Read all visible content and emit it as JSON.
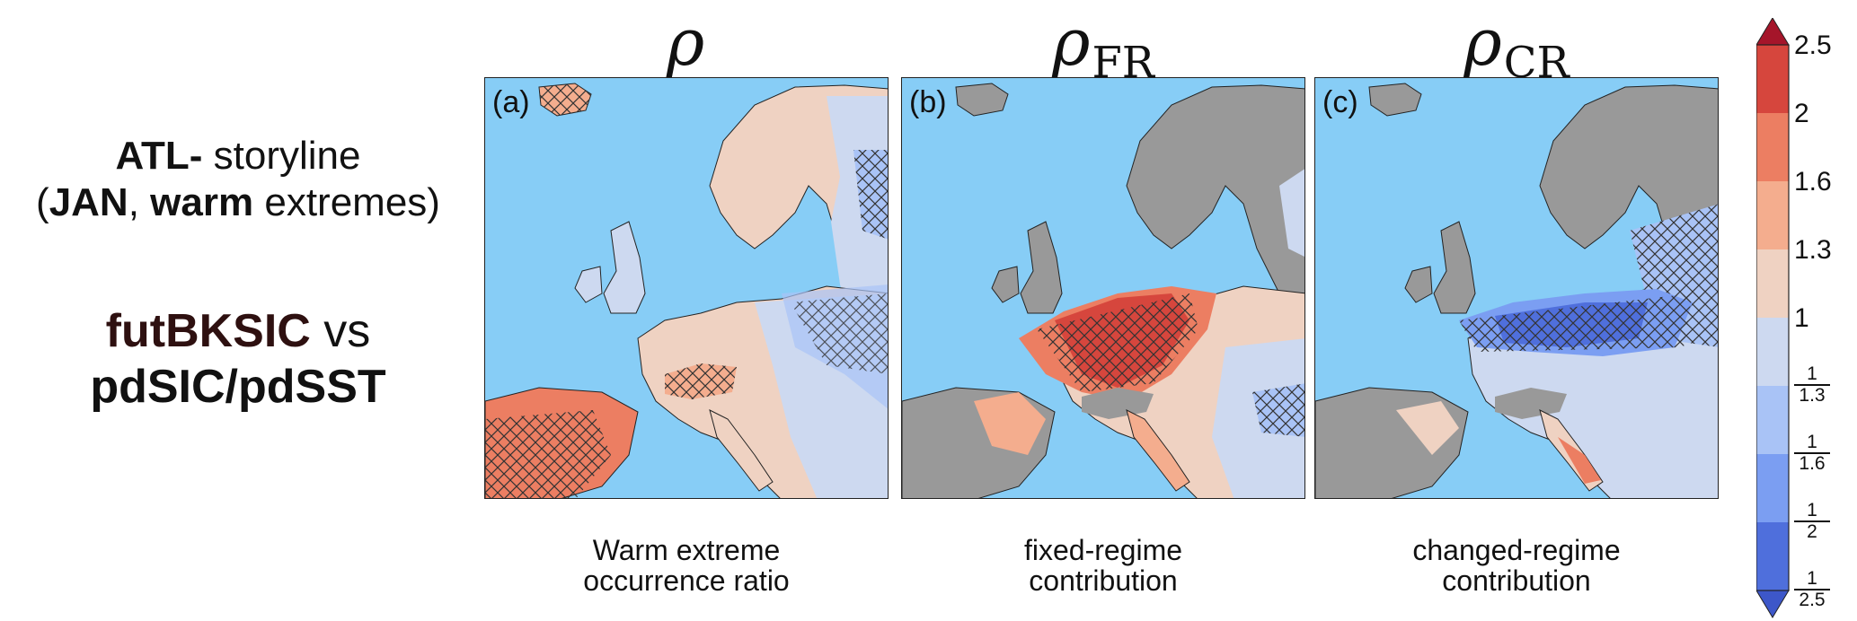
{
  "left": {
    "storyline_bold": "ATL-",
    "storyline_rest": " storyline",
    "paren_open": "(",
    "month": "JAN",
    "comma": ", ",
    "extreme_type": "warm",
    "extremes_word": " extremes)",
    "experiment_main": "futBKSIC",
    "experiment_vs": " vs",
    "experiment_baseline": "pdSIC/pdSST"
  },
  "panels": [
    {
      "symbol": "ρ",
      "subscript": "",
      "label": "(a)",
      "caption_line1": "Warm extreme",
      "caption_line2": "occurrence ratio"
    },
    {
      "symbol": "ρ",
      "subscript": "FR",
      "label": "(b)",
      "caption_line1": "fixed-regime",
      "caption_line2": "contribution"
    },
    {
      "symbol": "ρ",
      "subscript": "CR",
      "label": "(c)",
      "caption_line1": "changed-regime",
      "caption_line2": "contribution"
    }
  ],
  "colorbar": {
    "labels": [
      "2.5",
      "2",
      "1.6",
      "1.3",
      "1"
    ],
    "fractions": [
      {
        "num": "1",
        "den": "1.3"
      },
      {
        "num": "1",
        "den": "1.6"
      },
      {
        "num": "1",
        "den": "2"
      },
      {
        "num": "1",
        "den": "2.5"
      }
    ],
    "colors": {
      "over": "#a5152a",
      "c_2_to_25": "#d6463d",
      "c_16_to_2": "#ec7e62",
      "c_13_to_16": "#f4ad8e",
      "c_1_to_13": "#efd2c2",
      "c_077_to_1": "#cdd9f0",
      "c_062_to_077": "#a9c3f6",
      "c_05_to_062": "#7b9ef2",
      "c_04_to_05": "#4f6fdc",
      "under": "#3d57c9"
    }
  },
  "map_colors": {
    "sea": "#87cdf6",
    "masked_land": "#999999",
    "border": "#222222"
  }
}
